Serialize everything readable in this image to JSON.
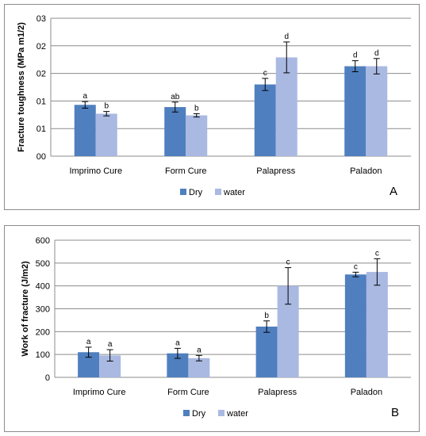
{
  "colors": {
    "dry": "#4f7fbf",
    "water": "#a9b9e2",
    "gridline": "#8c8c8c",
    "error_bar": "#000000"
  },
  "chart_data": [
    {
      "type": "bar",
      "panel_label": "A",
      "ylabel": "Fracture toughness (MPa m1/2)",
      "xlabel": "",
      "ylim": [
        0,
        2.5
      ],
      "yticks": [
        0,
        0.5,
        1,
        1.5,
        2,
        2.5
      ],
      "yticklabels": [
        "00",
        "01",
        "01",
        "02",
        "02",
        "03"
      ],
      "categories": [
        "Imprimo Cure",
        "Form Cure",
        "Palapress",
        "Paladon"
      ],
      "legend_position": "bottom",
      "grid": "horizontal",
      "series": [
        {
          "name": "Dry",
          "values": [
            0.93,
            0.89,
            1.3,
            1.63
          ],
          "errors": [
            0.06,
            0.09,
            0.11,
            0.1
          ],
          "labels": [
            "a",
            "ab",
            "c",
            "d"
          ]
        },
        {
          "name": "water",
          "values": [
            0.77,
            0.74,
            1.79,
            1.63
          ],
          "errors": [
            0.04,
            0.03,
            0.28,
            0.14
          ],
          "labels": [
            "b",
            "b",
            "d",
            "d"
          ]
        }
      ]
    },
    {
      "type": "bar",
      "panel_label": "B",
      "ylabel": "Work of fracture (J/m2)",
      "xlabel": "",
      "ylim": [
        0,
        600
      ],
      "yticks": [
        0,
        100,
        200,
        300,
        400,
        500,
        600
      ],
      "yticklabels": [
        "0",
        "100",
        "200",
        "300",
        "400",
        "500",
        "600"
      ],
      "categories": [
        "Imprimo Cure",
        "Form Cure",
        "Palapress",
        "Paladon"
      ],
      "legend_position": "bottom",
      "grid": "horizontal",
      "series": [
        {
          "name": "Dry",
          "values": [
            110,
            105,
            222,
            450
          ],
          "errors": [
            22,
            22,
            25,
            10
          ],
          "labels": [
            "a",
            "a",
            "b",
            "c"
          ]
        },
        {
          "name": "water",
          "values": [
            96,
            84,
            400,
            461
          ],
          "errors": [
            25,
            12,
            80,
            58
          ],
          "labels": [
            "a",
            "a",
            "c",
            "c"
          ]
        }
      ]
    }
  ]
}
